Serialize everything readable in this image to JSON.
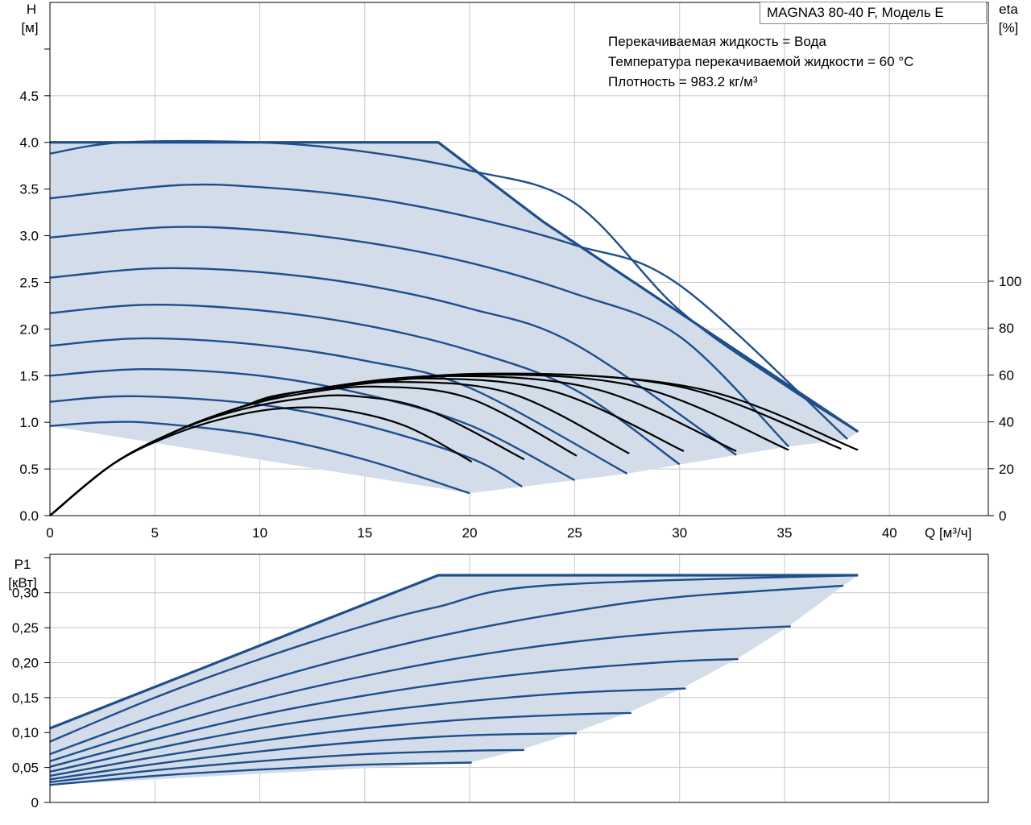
{
  "chart_data": [
    {
      "type": "line",
      "title": "MAGNA3 80-40 F, Модель E",
      "annotations": [
        "Перекачиваемая жидкость = Вода",
        "Температура перекачиваемой жидкости = 60 °C",
        "Плотность = 983.2 кг/м³"
      ],
      "xlabel": "Q [м³/ч]",
      "ylabel": [
        "H",
        "[м]"
      ],
      "y2label": [
        "eta",
        "[%]"
      ],
      "xlim": [
        0,
        45
      ],
      "ylim": [
        0,
        5.5
      ],
      "y2lim": [
        0,
        100
      ],
      "x_ticks": [
        "0",
        "5",
        "10",
        "15",
        "20",
        "25",
        "30",
        "35",
        "40"
      ],
      "y_ticks": [
        "0.0",
        "0.5",
        "1.0",
        "1.5",
        "2.0",
        "2.5",
        "3.0",
        "3.5",
        "4.0",
        "4.5"
      ],
      "y2_ticks": [
        "0",
        "20",
        "40",
        "60",
        "80",
        "100"
      ],
      "grid": true,
      "colors": {
        "curve": "#1f4e8c",
        "envelope": "#1f4e8c",
        "fill": "#d2dde9",
        "eta": "#000000",
        "grid": "#c8c8c8"
      },
      "envelope": [
        [
          0,
          4.0
        ],
        [
          18.5,
          4.0
        ],
        [
          23.5,
          3.15
        ],
        [
          38.5,
          0.9
        ],
        [
          38.0,
          0.82
        ],
        [
          35.2,
          0.74
        ],
        [
          32.7,
          0.65
        ],
        [
          30.1,
          0.55
        ],
        [
          27.5,
          0.45
        ],
        [
          25.0,
          0.38
        ],
        [
          22.5,
          0.31
        ],
        [
          20.0,
          0.24
        ],
        [
          0,
          0.96
        ]
      ],
      "head_series": [
        {
          "x": [
            0,
            2.5,
            5,
            10,
            15,
            20
          ],
          "values": [
            0.96,
            1.0,
            0.99,
            0.86,
            0.6,
            0.24
          ]
        },
        {
          "x": [
            0,
            4,
            10,
            15,
            20,
            22.5
          ],
          "values": [
            1.22,
            1.28,
            1.19,
            0.97,
            0.62,
            0.31
          ]
        },
        {
          "x": [
            0,
            4.5,
            10,
            15,
            20,
            25
          ],
          "values": [
            1.5,
            1.57,
            1.5,
            1.3,
            0.97,
            0.38
          ]
        },
        {
          "x": [
            0,
            4.5,
            10,
            15,
            20,
            27.5
          ],
          "values": [
            1.82,
            1.9,
            1.83,
            1.66,
            1.37,
            0.45
          ]
        },
        {
          "x": [
            0,
            4.7,
            10,
            15,
            20,
            25,
            30
          ],
          "values": [
            2.17,
            2.26,
            2.2,
            2.04,
            1.77,
            1.35,
            0.55
          ]
        },
        {
          "x": [
            0,
            5,
            10,
            15,
            20,
            25,
            32.7
          ],
          "values": [
            2.55,
            2.65,
            2.61,
            2.47,
            2.22,
            1.84,
            0.65
          ]
        },
        {
          "x": [
            0,
            5.5,
            10,
            15,
            20,
            25,
            30,
            35.2
          ],
          "values": [
            2.98,
            3.09,
            3.06,
            2.93,
            2.71,
            2.38,
            1.92,
            0.74
          ]
        },
        {
          "x": [
            0,
            6,
            10,
            15,
            20,
            25,
            30,
            38
          ],
          "values": [
            3.4,
            3.54,
            3.52,
            3.41,
            3.2,
            2.9,
            2.47,
            0.82
          ]
        },
        {
          "x": [
            0,
            3.5,
            10,
            15,
            20,
            25,
            30,
            35,
            38.5
          ],
          "values": [
            3.88,
            4.0,
            4.0,
            3.9,
            3.7,
            3.35,
            2.2,
            1.4,
            0.9
          ]
        }
      ],
      "eta_series": [
        {
          "x": [
            0,
            3,
            6,
            9,
            11.5,
            14,
            17,
            20.1
          ],
          "values": [
            0,
            22,
            35,
            43,
            46,
            45,
            38,
            23
          ]
        },
        {
          "x": [
            0,
            3,
            6,
            9,
            12,
            14.5,
            18,
            22.6
          ],
          "values": [
            0,
            22,
            36,
            45,
            50,
            51,
            45,
            24
          ]
        },
        {
          "x": [
            0,
            3,
            6,
            9,
            12,
            15.5,
            20,
            25.1
          ],
          "values": [
            0,
            22,
            36,
            46,
            52,
            55,
            50,
            25.5
          ]
        },
        {
          "x": [
            0,
            3,
            6,
            9,
            12,
            16.5,
            22,
            27.6
          ],
          "values": [
            0,
            22,
            36,
            46,
            53,
            57,
            52,
            26.5
          ]
        },
        {
          "x": [
            0,
            3,
            6,
            9,
            12,
            17.5,
            24,
            30.2
          ],
          "values": [
            0,
            22,
            36,
            46,
            53,
            58.5,
            53,
            27.5
          ]
        },
        {
          "x": [
            0,
            3,
            6,
            9,
            12,
            18.5,
            26,
            32.7
          ],
          "values": [
            0,
            22,
            36,
            46,
            53,
            59.5,
            54,
            27.5
          ]
        },
        {
          "x": [
            0,
            3,
            6,
            9,
            12,
            19.5,
            28,
            35.2
          ],
          "values": [
            0,
            22,
            36,
            46,
            53,
            60,
            55,
            28
          ]
        },
        {
          "x": [
            0,
            3,
            6,
            9,
            12,
            20.5,
            30,
            37.7
          ],
          "values": [
            0,
            22,
            36,
            46,
            53,
            60.5,
            55,
            28.5
          ]
        },
        {
          "x": [
            0,
            3,
            6,
            9,
            12,
            21.5,
            31,
            38.5
          ],
          "values": [
            0,
            22,
            36,
            46,
            53,
            60.5,
            54,
            28
          ]
        }
      ]
    },
    {
      "type": "line",
      "ylabel": [
        "P1",
        "[кВт]"
      ],
      "xlim": [
        0,
        45
      ],
      "ylim": [
        0,
        0.355
      ],
      "y_ticks": [
        "0",
        "0,05",
        "0,10",
        "0,15",
        "0,20",
        "0,25",
        "0,30"
      ],
      "grid": true,
      "colors": {
        "curve": "#1f4e8c",
        "fill": "#d2dde9",
        "grid": "#c8c8c8"
      },
      "envelope": [
        [
          0,
          0.106
        ],
        [
          18.5,
          0.325
        ],
        [
          38.5,
          0.325
        ],
        [
          37.8,
          0.31
        ],
        [
          35.2,
          0.252
        ],
        [
          32.7,
          0.205
        ],
        [
          30.1,
          0.163
        ],
        [
          27.5,
          0.128
        ],
        [
          25.0,
          0.1
        ],
        [
          22.5,
          0.076
        ],
        [
          20.0,
          0.057
        ],
        [
          0,
          0.025
        ]
      ],
      "power_series": [
        {
          "x": [
            0,
            5,
            10,
            15,
            20.1
          ],
          "values": [
            0.025,
            0.038,
            0.047,
            0.054,
            0.057
          ]
        },
        {
          "x": [
            0,
            5,
            10,
            15,
            20,
            22.6
          ],
          "values": [
            0.029,
            0.046,
            0.059,
            0.069,
            0.074,
            0.075
          ]
        },
        {
          "x": [
            0,
            5,
            10,
            15,
            20,
            25.1
          ],
          "values": [
            0.033,
            0.055,
            0.073,
            0.087,
            0.096,
            0.099
          ]
        },
        {
          "x": [
            0,
            5,
            10,
            15,
            20,
            25,
            27.7
          ],
          "values": [
            0.038,
            0.065,
            0.088,
            0.106,
            0.119,
            0.126,
            0.128
          ]
        },
        {
          "x": [
            0,
            5,
            10,
            15,
            20,
            25,
            30.3
          ],
          "values": [
            0.044,
            0.077,
            0.106,
            0.128,
            0.145,
            0.157,
            0.163
          ]
        },
        {
          "x": [
            0,
            5,
            10,
            15,
            20,
            25,
            30,
            32.8
          ],
          "values": [
            0.051,
            0.09,
            0.125,
            0.153,
            0.175,
            0.191,
            0.202,
            0.205
          ]
        },
        {
          "x": [
            0,
            5,
            10,
            15,
            20,
            25,
            30,
            35.3
          ],
          "values": [
            0.059,
            0.106,
            0.147,
            0.181,
            0.209,
            0.23,
            0.244,
            0.252
          ]
        },
        {
          "x": [
            0,
            5,
            10,
            15,
            20,
            25,
            30,
            37.8
          ],
          "values": [
            0.069,
            0.124,
            0.172,
            0.213,
            0.247,
            0.274,
            0.294,
            0.31
          ]
        },
        {
          "x": [
            0,
            5,
            10,
            15,
            18.5,
            23.5,
            38.5
          ],
          "values": [
            0.087,
            0.15,
            0.205,
            0.253,
            0.28,
            0.31,
            0.325
          ]
        }
      ],
      "envelope_top": {
        "x": [
          0,
          18.5,
          38.5
        ],
        "values": [
          0.106,
          0.325,
          0.325
        ]
      }
    }
  ]
}
